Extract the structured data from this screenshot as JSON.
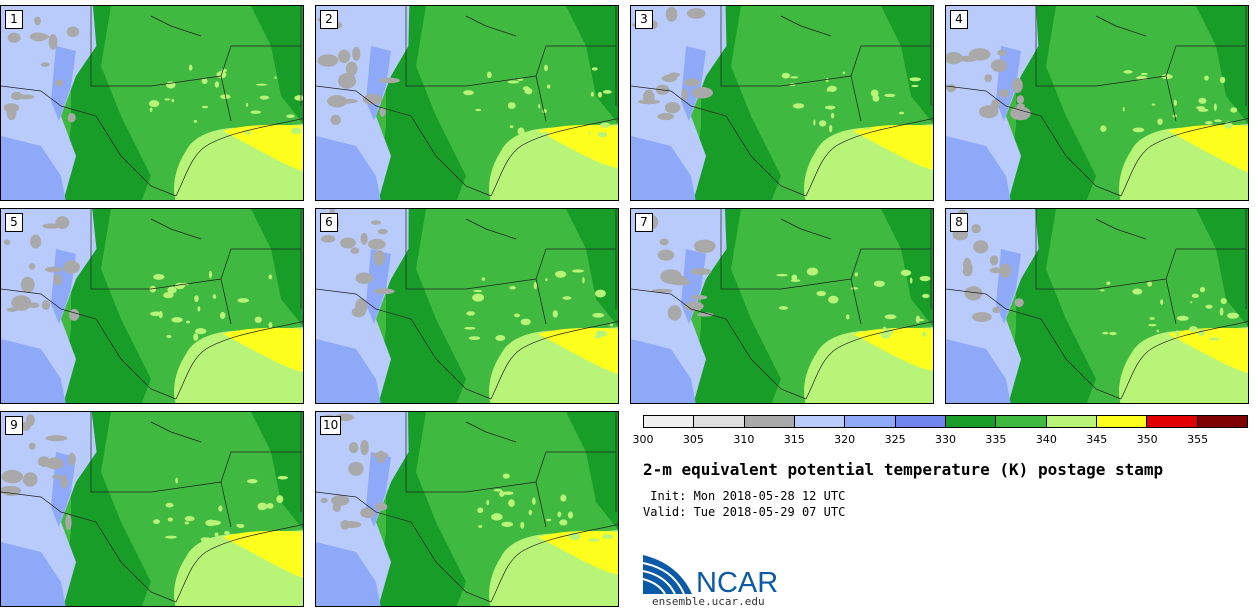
{
  "product": {
    "title": "2-m equivalent potential temperature (K) postage stamp",
    "init": " Init: Mon 2018-05-28 12 UTC",
    "valid": "Valid: Tue 2018-05-29 07 UTC",
    "logo_text": "NCAR",
    "url": "ensemble.ucar.edu"
  },
  "members": [
    "1",
    "2",
    "3",
    "4",
    "5",
    "6",
    "7",
    "8",
    "9",
    "10"
  ],
  "colorbar": {
    "levels": [
      "300",
      "305",
      "310",
      "315",
      "320",
      "325",
      "330",
      "335",
      "340",
      "345",
      "350",
      "355"
    ],
    "colors": [
      "#f0f0f0",
      "#e0e0e0",
      "#a9a9a9",
      "#b8cbfb",
      "#8ea9f7",
      "#7185ee",
      "#189e28",
      "#3fb93f",
      "#b8f478",
      "#ffff1e",
      "#e00000",
      "#7e0000"
    ]
  }
}
